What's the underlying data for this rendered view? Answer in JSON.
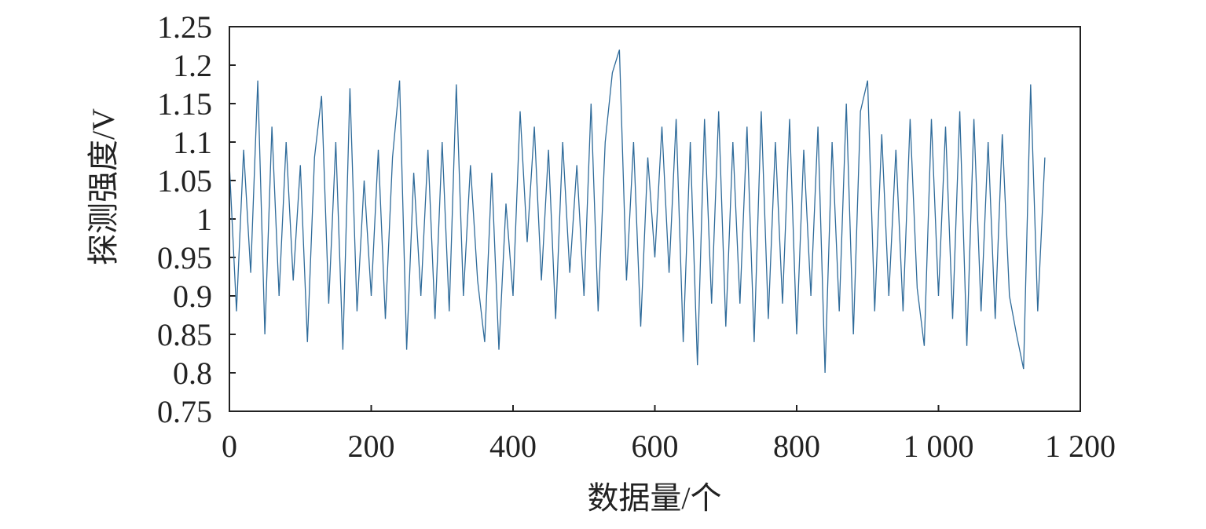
{
  "chart_data": {
    "type": "line",
    "xlabel": "数据量/个",
    "ylabel": "探测强度/V",
    "x": [
      0,
      10,
      20,
      30,
      40,
      50,
      60,
      70,
      80,
      90,
      100,
      110,
      120,
      130,
      140,
      150,
      160,
      170,
      180,
      190,
      200,
      210,
      220,
      230,
      240,
      250,
      260,
      270,
      280,
      290,
      300,
      310,
      320,
      330,
      340,
      350,
      360,
      370,
      380,
      390,
      400,
      410,
      420,
      430,
      440,
      450,
      460,
      470,
      480,
      490,
      500,
      510,
      520,
      530,
      540,
      550,
      560,
      570,
      580,
      590,
      600,
      610,
      620,
      630,
      640,
      650,
      660,
      670,
      680,
      690,
      700,
      710,
      720,
      730,
      740,
      750,
      760,
      770,
      780,
      790,
      800,
      810,
      820,
      830,
      840,
      850,
      860,
      870,
      880,
      890,
      900,
      910,
      920,
      930,
      940,
      950,
      960,
      970,
      980,
      990,
      1000,
      1010,
      1020,
      1030,
      1040,
      1050,
      1060,
      1070,
      1080,
      1090,
      1100,
      1110,
      1120,
      1130,
      1140,
      1150
    ],
    "series": [
      {
        "name": "探测强度",
        "color": "#2f6b9a",
        "values": [
          1.07,
          0.88,
          1.09,
          0.93,
          1.18,
          0.85,
          1.12,
          0.9,
          1.1,
          0.92,
          1.07,
          0.84,
          1.08,
          1.16,
          0.89,
          1.1,
          0.83,
          1.17,
          0.88,
          1.05,
          0.9,
          1.09,
          0.87,
          1.08,
          1.18,
          0.83,
          1.06,
          0.9,
          1.09,
          0.87,
          1.1,
          0.88,
          1.175,
          0.9,
          1.07,
          0.92,
          0.84,
          1.06,
          0.83,
          1.02,
          0.9,
          1.14,
          0.97,
          1.12,
          0.92,
          1.09,
          0.87,
          1.1,
          0.93,
          1.07,
          0.9,
          1.15,
          0.88,
          1.1,
          1.19,
          1.22,
          0.92,
          1.1,
          0.86,
          1.08,
          0.95,
          1.12,
          0.93,
          1.13,
          0.84,
          1.1,
          0.81,
          1.13,
          0.89,
          1.14,
          0.86,
          1.1,
          0.89,
          1.12,
          0.84,
          1.14,
          0.87,
          1.1,
          0.89,
          1.13,
          0.85,
          1.09,
          0.9,
          1.12,
          0.8,
          1.1,
          0.88,
          1.15,
          0.85,
          1.14,
          1.18,
          0.88,
          1.11,
          0.9,
          1.09,
          0.88,
          1.13,
          0.91,
          0.835,
          1.13,
          0.9,
          1.12,
          0.87,
          1.14,
          0.835,
          1.13,
          0.88,
          1.1,
          0.87,
          1.11,
          0.9,
          0.85,
          0.805,
          1.175,
          0.88,
          1.08
        ]
      }
    ],
    "xlim": [
      0,
      1200
    ],
    "xticks": [
      0,
      200,
      400,
      600,
      800,
      {
        "value": 1000,
        "label": "1 000"
      },
      {
        "value": 1200,
        "label": "1 200"
      }
    ],
    "ylim": [
      0.75,
      1.25
    ],
    "yticks": [
      0.75,
      0.8,
      0.85,
      0.9,
      0.95,
      1,
      1.05,
      1.1,
      1.15,
      1.2,
      1.25
    ],
    "grid": false
  }
}
